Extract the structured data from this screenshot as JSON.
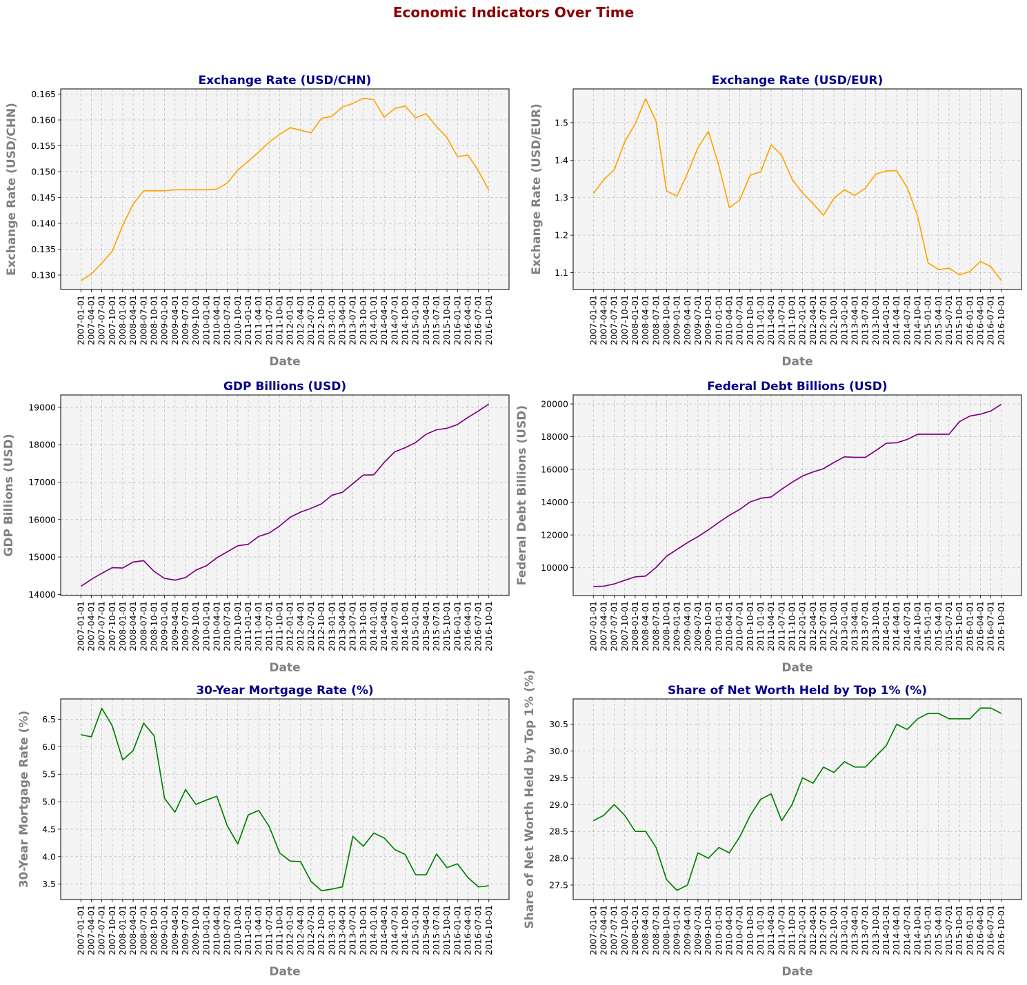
{
  "figure": {
    "title": "Economic Indicators Over Time"
  },
  "colors": {
    "orange": "#ffa500",
    "purple": "#800080",
    "green": "#008000",
    "panel_bg": "#f4f4f4",
    "title": "#00008b",
    "label": "#808080",
    "suptitle": "#8b0000"
  },
  "chart_data": [
    {
      "type": "line",
      "title": "Exchange Rate (USD/CHN)",
      "xlabel": "Date",
      "ylabel": "Exchange Rate (USD/CHN)",
      "color": "orange",
      "grid": true,
      "ylim": [
        0.1272,
        0.166
      ],
      "yticks": [
        0.13,
        0.135,
        0.14,
        0.145,
        0.15,
        0.155,
        0.16,
        0.165
      ],
      "ytick_labels": [
        "0.130",
        "0.135",
        "0.140",
        "0.145",
        "0.150",
        "0.155",
        "0.160",
        "0.165"
      ],
      "x": [
        "2007-01-01",
        "2007-04-01",
        "2007-07-01",
        "2007-10-01",
        "2008-01-01",
        "2008-04-01",
        "2008-07-01",
        "2008-10-01",
        "2009-01-01",
        "2009-04-01",
        "2009-07-01",
        "2009-10-01",
        "2010-01-01",
        "2010-04-01",
        "2010-07-01",
        "2010-10-01",
        "2011-01-01",
        "2011-04-01",
        "2011-07-01",
        "2011-10-01",
        "2012-01-01",
        "2012-04-01",
        "2012-07-01",
        "2012-10-01",
        "2013-01-01",
        "2013-04-01",
        "2013-07-01",
        "2013-10-01",
        "2014-01-01",
        "2014-04-01",
        "2014-07-01",
        "2014-10-01",
        "2015-01-01",
        "2015-04-01",
        "2015-07-01",
        "2015-10-01",
        "2016-01-01",
        "2016-04-01",
        "2016-07-01",
        "2016-10-01"
      ],
      "values": [
        0.1289,
        0.1302,
        0.1323,
        0.1346,
        0.1396,
        0.1437,
        0.1463,
        0.1463,
        0.1463,
        0.1465,
        0.1465,
        0.1465,
        0.1465,
        0.1466,
        0.1478,
        0.1503,
        0.152,
        0.1538,
        0.1557,
        0.1572,
        0.1585,
        0.158,
        0.1575,
        0.1603,
        0.1607,
        0.1625,
        0.1632,
        0.1642,
        0.1639,
        0.1605,
        0.1622,
        0.1627,
        0.1604,
        0.1612,
        0.1587,
        0.1566,
        0.1529,
        0.1532,
        0.1502,
        0.1464
      ]
    },
    {
      "type": "line",
      "title": "Exchange Rate (USD/EUR)",
      "xlabel": "Date",
      "ylabel": "Exchange Rate (USD/EUR)",
      "color": "orange",
      "grid": true,
      "ylim": [
        1.055,
        1.59
      ],
      "yticks": [
        1.1,
        1.2,
        1.3,
        1.4,
        1.5
      ],
      "ytick_labels": [
        "1.1",
        "1.2",
        "1.3",
        "1.4",
        "1.5"
      ],
      "x": [
        "2007-01-01",
        "2007-04-01",
        "2007-07-01",
        "2007-10-01",
        "2008-01-01",
        "2008-04-01",
        "2008-07-01",
        "2008-10-01",
        "2009-01-01",
        "2009-04-01",
        "2009-07-01",
        "2009-10-01",
        "2010-01-01",
        "2010-04-01",
        "2010-07-01",
        "2010-10-01",
        "2011-01-01",
        "2011-04-01",
        "2011-07-01",
        "2011-10-01",
        "2012-01-01",
        "2012-04-01",
        "2012-07-01",
        "2012-10-01",
        "2013-01-01",
        "2013-04-01",
        "2013-07-01",
        "2013-10-01",
        "2014-01-01",
        "2014-04-01",
        "2014-07-01",
        "2014-10-01",
        "2015-01-01",
        "2015-04-01",
        "2015-07-01",
        "2015-10-01",
        "2016-01-01",
        "2016-04-01",
        "2016-07-01",
        "2016-10-01"
      ],
      "values": [
        1.311,
        1.348,
        1.375,
        1.449,
        1.497,
        1.564,
        1.503,
        1.318,
        1.304,
        1.365,
        1.433,
        1.477,
        1.385,
        1.273,
        1.294,
        1.36,
        1.369,
        1.441,
        1.413,
        1.349,
        1.313,
        1.284,
        1.253,
        1.298,
        1.321,
        1.306,
        1.325,
        1.363,
        1.371,
        1.372,
        1.327,
        1.251,
        1.126,
        1.108,
        1.112,
        1.094,
        1.103,
        1.13,
        1.116,
        1.079
      ]
    },
    {
      "type": "line",
      "title": "GDP Billions (USD)",
      "xlabel": "Date",
      "ylabel": "GDP Billions (USD)",
      "color": "purple",
      "grid": true,
      "ylim": [
        13970,
        19330
      ],
      "yticks": [
        14000,
        15000,
        16000,
        17000,
        18000,
        19000
      ],
      "ytick_labels": [
        "14000",
        "15000",
        "16000",
        "17000",
        "18000",
        "19000"
      ],
      "x": [
        "2007-01-01",
        "2007-04-01",
        "2007-07-01",
        "2007-10-01",
        "2008-01-01",
        "2008-04-01",
        "2008-07-01",
        "2008-10-01",
        "2009-01-01",
        "2009-04-01",
        "2009-07-01",
        "2009-10-01",
        "2010-01-01",
        "2010-04-01",
        "2010-07-01",
        "2010-10-01",
        "2011-01-01",
        "2011-04-01",
        "2011-07-01",
        "2011-10-01",
        "2012-01-01",
        "2012-04-01",
        "2012-07-01",
        "2012-10-01",
        "2013-01-01",
        "2013-04-01",
        "2013-07-01",
        "2013-10-01",
        "2014-01-01",
        "2014-04-01",
        "2014-07-01",
        "2014-10-01",
        "2015-01-01",
        "2015-04-01",
        "2015-07-01",
        "2015-10-01",
        "2016-01-01",
        "2016-04-01",
        "2016-07-01",
        "2016-10-01"
      ],
      "values": [
        14215,
        14402,
        14565,
        14716,
        14706,
        14866,
        14902,
        14613,
        14430,
        14382,
        14450,
        14650,
        14765,
        14980,
        15140,
        15300,
        15340,
        15550,
        15640,
        15830,
        16060,
        16200,
        16300,
        16420,
        16650,
        16730,
        16960,
        17190,
        17195,
        17530,
        17810,
        17920,
        18060,
        18280,
        18400,
        18440,
        18540,
        18730,
        18900,
        19090
      ]
    },
    {
      "type": "line",
      "title": "Federal Debt Billions (USD)",
      "xlabel": "Date",
      "ylabel": "Federal Debt Billions (USD)",
      "color": "purple",
      "grid": true,
      "ylim": [
        8300,
        20550
      ],
      "yticks": [
        10000,
        12000,
        14000,
        16000,
        18000,
        20000
      ],
      "ytick_labels": [
        "10000",
        "12000",
        "14000",
        "16000",
        "18000",
        "20000"
      ],
      "x": [
        "2007-01-01",
        "2007-04-01",
        "2007-07-01",
        "2007-10-01",
        "2008-01-01",
        "2008-04-01",
        "2008-07-01",
        "2008-10-01",
        "2009-01-01",
        "2009-04-01",
        "2009-07-01",
        "2009-10-01",
        "2010-01-01",
        "2010-04-01",
        "2010-07-01",
        "2010-10-01",
        "2011-01-01",
        "2011-04-01",
        "2011-07-01",
        "2011-10-01",
        "2012-01-01",
        "2012-04-01",
        "2012-07-01",
        "2012-10-01",
        "2013-01-01",
        "2013-04-01",
        "2013-07-01",
        "2013-10-01",
        "2014-01-01",
        "2014-04-01",
        "2014-07-01",
        "2014-10-01",
        "2015-01-01",
        "2015-04-01",
        "2015-07-01",
        "2015-10-01",
        "2016-01-01",
        "2016-04-01",
        "2016-07-01",
        "2016-10-01"
      ],
      "values": [
        8850,
        8870,
        9010,
        9230,
        9440,
        9490,
        10020,
        10700,
        11120,
        11530,
        11900,
        12310,
        12770,
        13200,
        13560,
        14020,
        14240,
        14320,
        14790,
        15220,
        15600,
        15850,
        16050,
        16430,
        16770,
        16740,
        16740,
        17150,
        17600,
        17630,
        17830,
        18150,
        18150,
        18150,
        18150,
        18920,
        19260,
        19380,
        19570,
        19980
      ]
    },
    {
      "type": "line",
      "title": "30-Year Mortgage Rate (%)",
      "xlabel": "Date",
      "ylabel": "30-Year Mortgage Rate (%)",
      "color": "green",
      "grid": true,
      "ylim": [
        3.22,
        6.87
      ],
      "yticks": [
        3.5,
        4.0,
        4.5,
        5.0,
        5.5,
        6.0,
        6.5
      ],
      "ytick_labels": [
        "3.5",
        "4.0",
        "4.5",
        "5.0",
        "5.5",
        "6.0",
        "6.5"
      ],
      "x": [
        "2007-01-01",
        "2007-04-01",
        "2007-07-01",
        "2007-10-01",
        "2008-01-01",
        "2008-04-01",
        "2008-07-01",
        "2008-10-01",
        "2009-01-01",
        "2009-04-01",
        "2009-07-01",
        "2009-10-01",
        "2010-01-01",
        "2010-04-01",
        "2010-07-01",
        "2010-10-01",
        "2011-01-01",
        "2011-04-01",
        "2011-07-01",
        "2011-10-01",
        "2012-01-01",
        "2012-04-01",
        "2012-07-01",
        "2012-10-01",
        "2013-01-01",
        "2013-04-01",
        "2013-07-01",
        "2013-10-01",
        "2014-01-01",
        "2014-04-01",
        "2014-07-01",
        "2014-10-01",
        "2015-01-01",
        "2015-04-01",
        "2015-07-01",
        "2015-10-01",
        "2016-01-01",
        "2016-04-01",
        "2016-07-01",
        "2016-10-01"
      ],
      "values": [
        6.22,
        6.18,
        6.7,
        6.38,
        5.76,
        5.93,
        6.43,
        6.2,
        5.06,
        4.81,
        5.22,
        4.95,
        5.03,
        5.1,
        4.56,
        4.23,
        4.76,
        4.84,
        4.55,
        4.07,
        3.92,
        3.91,
        3.55,
        3.38,
        3.41,
        3.45,
        4.37,
        4.19,
        4.43,
        4.34,
        4.13,
        4.04,
        3.67,
        3.67,
        4.05,
        3.8,
        3.87,
        3.62,
        3.45,
        3.47
      ]
    },
    {
      "type": "line",
      "title": "Share of Net Worth Held by Top 1% (%)",
      "xlabel": "Date",
      "ylabel": "Share of Net Worth Held by Top 1% (%)",
      "color": "green",
      "grid": true,
      "ylim": [
        27.23,
        30.97
      ],
      "yticks": [
        27.5,
        28.0,
        28.5,
        29.0,
        29.5,
        30.0,
        30.5
      ],
      "ytick_labels": [
        "27.5",
        "28.0",
        "28.5",
        "29.0",
        "29.5",
        "30.0",
        "30.5"
      ],
      "x": [
        "2007-01-01",
        "2007-04-01",
        "2007-07-01",
        "2007-10-01",
        "2008-01-01",
        "2008-04-01",
        "2008-07-01",
        "2008-10-01",
        "2009-01-01",
        "2009-04-01",
        "2009-07-01",
        "2009-10-01",
        "2010-01-01",
        "2010-04-01",
        "2010-07-01",
        "2010-10-01",
        "2011-01-01",
        "2011-04-01",
        "2011-07-01",
        "2011-10-01",
        "2012-01-01",
        "2012-04-01",
        "2012-07-01",
        "2012-10-01",
        "2013-01-01",
        "2013-04-01",
        "2013-07-01",
        "2013-10-01",
        "2014-01-01",
        "2014-04-01",
        "2014-07-01",
        "2014-10-01",
        "2015-01-01",
        "2015-04-01",
        "2015-07-01",
        "2015-10-01",
        "2016-01-01",
        "2016-04-01",
        "2016-07-01",
        "2016-10-01"
      ],
      "values": [
        28.7,
        28.8,
        29.0,
        28.8,
        28.5,
        28.5,
        28.2,
        27.6,
        27.4,
        27.5,
        28.1,
        28.0,
        28.2,
        28.1,
        28.4,
        28.8,
        29.1,
        29.2,
        28.7,
        29.0,
        29.5,
        29.4,
        29.7,
        29.6,
        29.8,
        29.7,
        29.7,
        29.9,
        30.1,
        30.5,
        30.4,
        30.6,
        30.7,
        30.7,
        30.6,
        30.6,
        30.6,
        30.8,
        30.8,
        30.7
      ]
    }
  ]
}
